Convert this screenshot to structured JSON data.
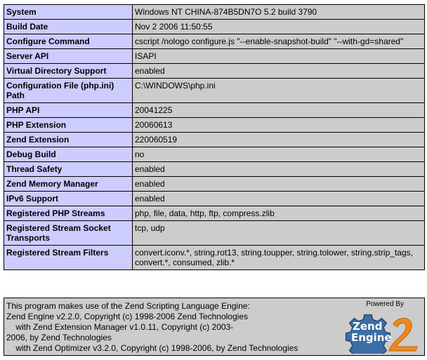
{
  "info_rows": [
    {
      "label": "System",
      "value": "Windows NT CHINA-874B5DN7O 5.2 build 3790"
    },
    {
      "label": "Build Date",
      "value": "Nov 2 2006 11:50:55"
    },
    {
      "label": "Configure Command",
      "value": "cscript /nologo configure.js \"--enable-snapshot-build\" \"--with-gd=shared\""
    },
    {
      "label": "Server API",
      "value": "ISAPI"
    },
    {
      "label": "Virtual Directory Support",
      "value": "enabled"
    },
    {
      "label": "Configuration File (php.ini) Path",
      "value": "C:\\WINDOWS\\php.ini"
    },
    {
      "label": "PHP API",
      "value": "20041225"
    },
    {
      "label": "PHP Extension",
      "value": "20060613"
    },
    {
      "label": "Zend Extension",
      "value": "220060519"
    },
    {
      "label": "Debug Build",
      "value": "no"
    },
    {
      "label": "Thread Safety",
      "value": "enabled"
    },
    {
      "label": "Zend Memory Manager",
      "value": "enabled"
    },
    {
      "label": "IPv6 Support",
      "value": "enabled"
    },
    {
      "label": "Registered PHP Streams",
      "value": "php, file, data, http, ftp, compress.zlib"
    },
    {
      "label": "Registered Stream Socket Transports",
      "value": "tcp, udp"
    },
    {
      "label": "Registered Stream Filters",
      "value": "convert.iconv.*, string.rot13, string.toupper, string.tolower, string.strip_tags, convert.*, consumed, zlib.*"
    }
  ],
  "credits": {
    "line1": "This program makes use of the Zend Scripting Language Engine:",
    "line2": "Zend Engine v2.2.0, Copyright (c) 1998-2006 Zend Technologies",
    "line3": "    with Zend Extension Manager v1.0.11, Copyright (c) 2003-",
    "line4": "2006, by Zend Technologies",
    "line5": "    with Zend Optimizer v3.2.0, Copyright (c) 1998-2006, by Zend Technologies",
    "powered_by": "Powered By",
    "logo_text": "Zend Engine 2"
  },
  "colors": {
    "label_bg": "#ccccff",
    "value_bg": "#cccccc",
    "logo_blue": "#3a6ea5",
    "logo_orange": "#f08a1c"
  }
}
